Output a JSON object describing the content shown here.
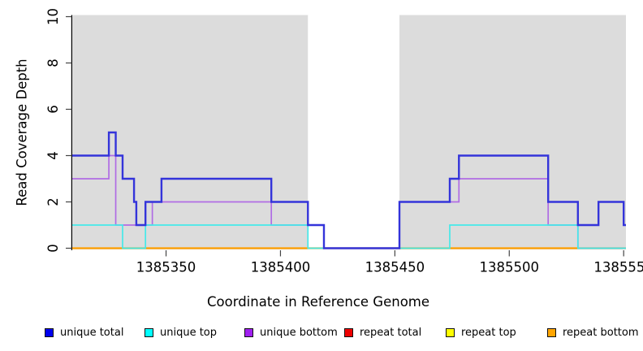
{
  "chart_data": {
    "type": "line",
    "subtype": "step-coverage",
    "title": "",
    "xlabel": "Coordinate in Reference Genome",
    "ylabel": "Read Coverage Depth",
    "xlim": [
      1385309,
      1385551
    ],
    "ylim": [
      0,
      10
    ],
    "grid": false,
    "x_tick_values": [
      1385350,
      1385400,
      1385450,
      1385500,
      1385550
    ],
    "x_tick_labels": [
      "1385350",
      "1385400",
      "1385450",
      "1385500",
      "1385550"
    ],
    "y_tick_values": [
      0,
      2,
      4,
      6,
      8,
      10
    ],
    "y_tick_labels": [
      "0",
      "2",
      "4",
      "6",
      "8",
      "10"
    ],
    "shaded_regions": [
      {
        "x_from": 1385309,
        "x_to": 1385412,
        "color": "#dcdcdc"
      },
      {
        "x_from": 1385452,
        "x_to": 1385551,
        "color": "#dcdcdc"
      }
    ],
    "series": [
      {
        "name": "repeat total",
        "line_color": "#dd0000",
        "width": 1.5,
        "steps": [
          [
            1385309,
            0
          ]
        ]
      },
      {
        "name": "repeat top",
        "line_color": "#f2f200",
        "width": 1.5,
        "steps": [
          [
            1385309,
            0
          ]
        ]
      },
      {
        "name": "repeat bottom",
        "line_color": "#ff9e00",
        "width": 2.2,
        "steps": [
          [
            1385309,
            0
          ]
        ]
      },
      {
        "name": "unique bottom",
        "line_color": "#b06ce4",
        "width": 1.7,
        "steps": [
          [
            1385309,
            3
          ],
          [
            1385325,
            4
          ],
          [
            1385328,
            1
          ],
          [
            1385344,
            2
          ],
          [
            1385396,
            1
          ],
          [
            1385419,
            0
          ],
          [
            1385452,
            2
          ],
          [
            1385478,
            3
          ],
          [
            1385517,
            1
          ],
          [
            1385530,
            0
          ]
        ]
      },
      {
        "name": "unique top",
        "line_color": "#45e9e9",
        "width": 1.7,
        "steps": [
          [
            1385309,
            1
          ],
          [
            1385331,
            0
          ],
          [
            1385341,
            1
          ],
          [
            1385412,
            0
          ],
          [
            1385474,
            1
          ],
          [
            1385530,
            0
          ]
        ]
      },
      {
        "name": "unique total",
        "line_color": "#3434da",
        "width": 2.4,
        "steps": [
          [
            1385309,
            4
          ],
          [
            1385325,
            5
          ],
          [
            1385328,
            4
          ],
          [
            1385331,
            3
          ],
          [
            1385336,
            2
          ],
          [
            1385337,
            1
          ],
          [
            1385341,
            2
          ],
          [
            1385348,
            3
          ],
          [
            1385396,
            2
          ],
          [
            1385412,
            1
          ],
          [
            1385419,
            0
          ],
          [
            1385452,
            2
          ],
          [
            1385474,
            3
          ],
          [
            1385478,
            4
          ],
          [
            1385517,
            2
          ],
          [
            1385530,
            1
          ],
          [
            1385539,
            2
          ],
          [
            1385550,
            1
          ]
        ]
      }
    ]
  },
  "legend": {
    "items": [
      {
        "label": "unique total",
        "color": "#0000ee"
      },
      {
        "label": "unique top",
        "color": "#00ffff"
      },
      {
        "label": "unique bottom",
        "color": "#a020f0"
      },
      {
        "label": "repeat total",
        "color": "#ee0000"
      },
      {
        "label": "repeat top",
        "color": "#ffff00"
      },
      {
        "label": "repeat bottom",
        "color": "#ffa500"
      }
    ]
  }
}
